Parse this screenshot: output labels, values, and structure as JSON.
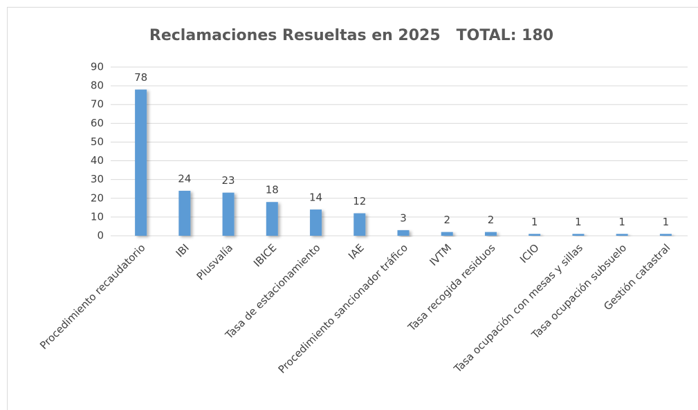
{
  "chart_data": {
    "type": "bar",
    "title": "Reclamaciones Resueltas en 2025   TOTAL: 180",
    "categories": [
      "Procedimiento recaudatorio",
      "IBI",
      "Plusvalía",
      "IBICE",
      "Tasa de estacionamiento",
      "IAE",
      "Procedimiento sancionador tráfico",
      "IVTM",
      "Tasa recogida residuos",
      "ICIO",
      "Tasa ocupación con mesas y sillas",
      "Tasa ocupación subsuelo",
      "Gestión catastral"
    ],
    "values": [
      78,
      24,
      23,
      18,
      14,
      12,
      3,
      2,
      2,
      1,
      1,
      1,
      1
    ],
    "color": "#5b9bd5",
    "ylim": [
      0,
      90
    ],
    "yticks": [
      0,
      10,
      20,
      30,
      40,
      50,
      60,
      70,
      80,
      90
    ],
    "grid": true
  }
}
